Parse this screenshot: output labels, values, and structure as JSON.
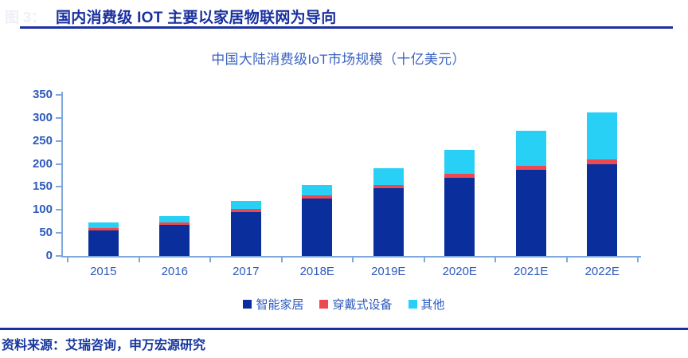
{
  "header": {
    "figure_label": "图 3：",
    "title": "国内消费级 IOT 主要以家居物联网为导向"
  },
  "chart_data": {
    "type": "bar",
    "stacked": true,
    "title": "中国大陆消费级IoT市场规模（十亿美元）",
    "categories": [
      "2015",
      "2016",
      "2017",
      "2018E",
      "2019E",
      "2020E",
      "2021E",
      "2022E"
    ],
    "series": [
      {
        "name": "智能家居",
        "color": "#0a2f9d",
        "values": [
          56,
          68,
          96,
          124,
          148,
          170,
          187,
          200
        ]
      },
      {
        "name": "穿戴式设备",
        "color": "#ee4950",
        "values": [
          4,
          5,
          6,
          8,
          7,
          8,
          9,
          10
        ]
      },
      {
        "name": "其他",
        "color": "#29d0f5",
        "values": [
          12,
          14,
          17,
          22,
          36,
          53,
          76,
          102
        ]
      }
    ],
    "totals": [
      72,
      87,
      119,
      154,
      191,
      231,
      272,
      312
    ],
    "ylim": [
      0,
      350
    ],
    "yticks": [
      0,
      50,
      100,
      150,
      200,
      250,
      300,
      350
    ],
    "xlabel": "",
    "ylabel": "",
    "grid": false,
    "legend_position": "bottom"
  },
  "footer": {
    "source": "资料来源：艾瑞咨询，申万宏源研究"
  },
  "colors": {
    "accent_navy": "#1d30a0",
    "header_text": "#19309e",
    "chart_title": "#3a63c2",
    "axis_line": "#7fa9dd",
    "axis_text": "#2e5bbc",
    "source_text": "#17379e",
    "watermark": "#eef0f7"
  }
}
